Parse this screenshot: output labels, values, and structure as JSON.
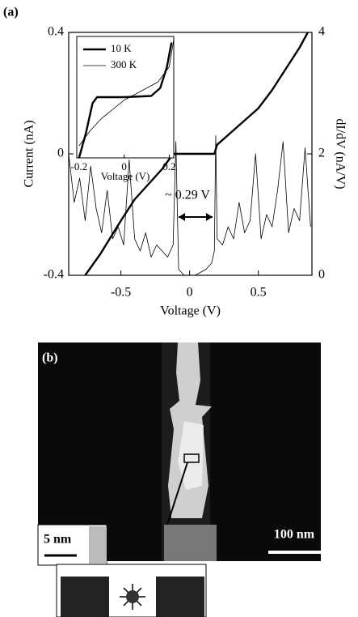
{
  "figure": {
    "panel_a_label": "(a)",
    "panel_b": {
      "label": "(b)",
      "inset_scale": "5 nm",
      "scale_bar": "100 nm"
    }
  },
  "chart_data": [
    {
      "type": "line",
      "xlabel": "Voltage (V)",
      "ylabel": "Current (nA)",
      "y2label": "dI/dV (nA/V)",
      "xlim": [
        -0.88,
        0.89
      ],
      "xticks": [
        -0.5,
        0,
        0.5
      ],
      "ylim": [
        -0.4,
        0.4
      ],
      "yticks": [
        -0.4,
        0,
        0.4
      ],
      "y2lim": [
        0,
        4
      ],
      "y2ticks": [
        0,
        2,
        4
      ],
      "annotations": [
        "~ 0.29 V"
      ],
      "series": [
        {
          "color": "#000000",
          "linewidth": 2.4,
          "x": [
            -0.76,
            -0.65,
            -0.5,
            -0.4,
            -0.3,
            -0.2,
            -0.12,
            0.0,
            0.18,
            0.2,
            0.3,
            0.4,
            0.5,
            0.6,
            0.7,
            0.8,
            0.86
          ],
          "values": [
            -0.4,
            -0.33,
            -0.22,
            -0.15,
            -0.1,
            -0.05,
            0,
            0,
            0,
            0.03,
            0.07,
            0.11,
            0.15,
            0.21,
            0.28,
            0.35,
            0.4
          ]
        },
        {
          "color": "#000000",
          "linewidth": 0.8,
          "axis": "y2",
          "x": [
            -0.88,
            -0.84,
            -0.8,
            -0.76,
            -0.72,
            -0.68,
            -0.64,
            -0.6,
            -0.56,
            -0.52,
            -0.48,
            -0.44,
            -0.4,
            -0.36,
            -0.32,
            -0.28,
            -0.24,
            -0.2,
            -0.16,
            -0.12,
            -0.1,
            -0.08,
            -0.04,
            0,
            0.04,
            0.08,
            0.12,
            0.16,
            0.18,
            0.19,
            0.2,
            0.24,
            0.28,
            0.32,
            0.36,
            0.4,
            0.44,
            0.48,
            0.52,
            0.56,
            0.6,
            0.64,
            0.68,
            0.72,
            0.76,
            0.8,
            0.84,
            0.88
          ],
          "values": [
            2.0,
            1.2,
            1.6,
            0.9,
            1.8,
            1.1,
            0.7,
            1.4,
            0.6,
            0.8,
            0.5,
            1.9,
            0.6,
            0.4,
            0.7,
            0.3,
            0.5,
            0.4,
            0.3,
            0.5,
            2.2,
            0.1,
            0.0,
            0.0,
            0.0,
            0.05,
            0.1,
            0.2,
            0.4,
            2.3,
            0.6,
            0.5,
            0.8,
            0.6,
            1.2,
            0.7,
            0.9,
            2.0,
            0.6,
            1.0,
            0.8,
            1.4,
            2.2,
            0.7,
            1.1,
            0.9,
            2.1,
            0.8
          ]
        }
      ]
    },
    {
      "type": "line",
      "xlabel": "Voltage (V)",
      "xlim": [
        -0.21,
        0.22
      ],
      "xticks": [
        -0.2,
        0,
        0.2
      ],
      "ylim": [
        -1,
        1
      ],
      "legend": "upper left",
      "series": [
        {
          "name": "10 K",
          "color": "#000000",
          "linewidth": 2.4,
          "x": [
            -0.2,
            -0.17,
            -0.14,
            -0.12,
            0,
            0.12,
            0.16,
            0.19,
            0.21
          ],
          "values": [
            -1,
            -0.6,
            -0.1,
            0,
            0,
            0.02,
            0.15,
            0.5,
            0.9
          ]
        },
        {
          "name": "300 K",
          "color": "#000000",
          "linewidth": 0.8,
          "x": [
            -0.2,
            -0.15,
            -0.1,
            -0.05,
            0,
            0.05,
            0.1,
            0.15,
            0.2,
            0.22
          ],
          "values": [
            -0.8,
            -0.55,
            -0.35,
            -0.2,
            -0.05,
            0.05,
            0.15,
            0.25,
            0.5,
            0.95
          ]
        }
      ]
    }
  ]
}
